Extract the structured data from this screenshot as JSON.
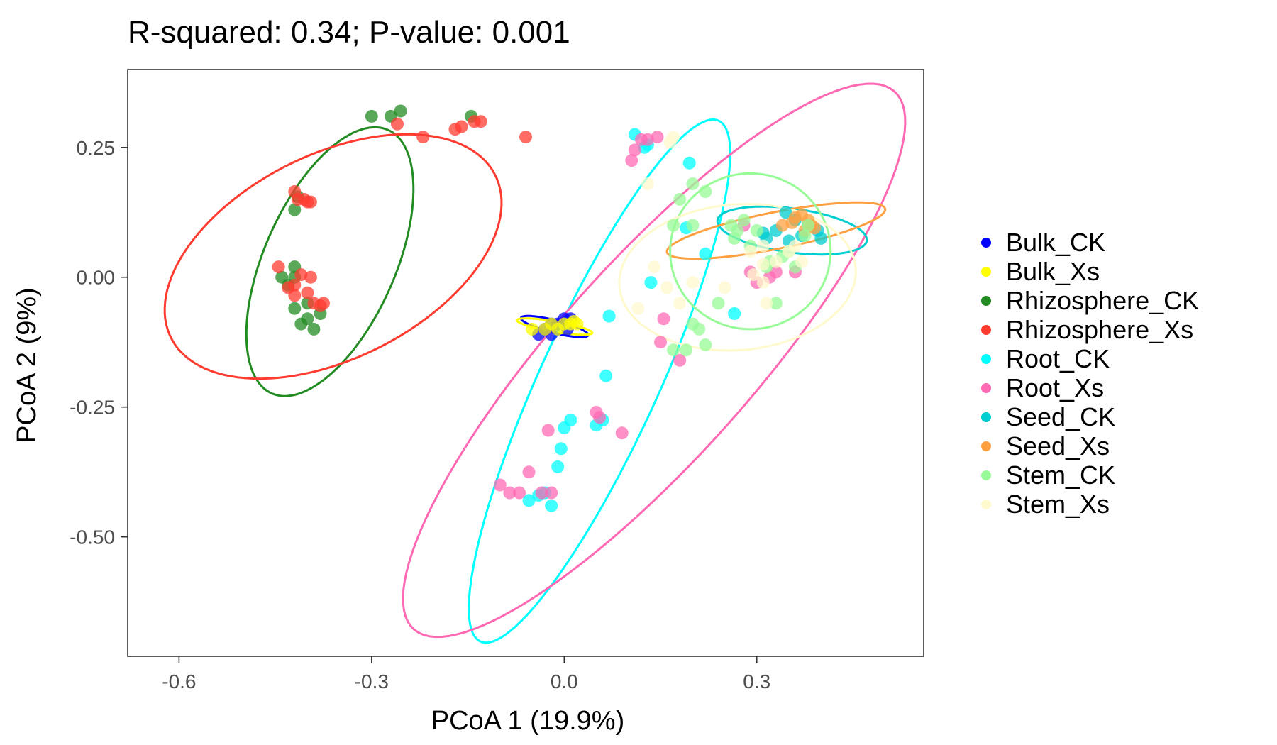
{
  "chart_data": {
    "type": "scatter",
    "title": "R-squared: 0.34; P-value: 0.001",
    "xlabel": "PCoA 1 (19.9%)",
    "ylabel": "PCoA 2 (9%)",
    "xlim": [
      -0.68,
      0.56
    ],
    "ylim": [
      -0.73,
      0.4
    ],
    "x_ticks": [
      {
        "value": -0.6,
        "label": "-0.6"
      },
      {
        "value": -0.3,
        "label": "-0.3"
      },
      {
        "value": 0.0,
        "label": "0.0"
      },
      {
        "value": 0.3,
        "label": "0.3"
      }
    ],
    "y_ticks": [
      {
        "value": 0.25,
        "label": "0.25"
      },
      {
        "value": 0.0,
        "label": "0.00"
      },
      {
        "value": -0.25,
        "label": "-0.25"
      },
      {
        "value": -0.5,
        "label": "-0.50"
      }
    ],
    "legend_position": "right",
    "grid": false,
    "series": [
      {
        "name": "Bulk_CK",
        "color": "#0000FF",
        "points": [
          [
            -0.04,
            -0.11
          ],
          [
            -0.03,
            -0.1
          ],
          [
            -0.02,
            -0.09
          ],
          [
            -0.01,
            -0.09
          ],
          [
            0.0,
            -0.08
          ],
          [
            0.01,
            -0.08
          ],
          [
            -0.02,
            -0.11
          ],
          [
            0.005,
            -0.1
          ]
        ],
        "ellipse": {
          "center": [
            -0.015,
            -0.095
          ],
          "rx": 0.055,
          "ry": 0.012,
          "angle_deg": -18
        }
      },
      {
        "name": "Bulk_Xs",
        "color": "#FFFF00",
        "points": [
          [
            -0.05,
            -0.1
          ],
          [
            -0.03,
            -0.1
          ],
          [
            -0.02,
            -0.09
          ],
          [
            0.0,
            -0.09
          ],
          [
            0.01,
            -0.09
          ],
          [
            0.02,
            -0.09
          ],
          [
            -0.01,
            -0.1
          ],
          [
            0.015,
            -0.085
          ]
        ],
        "ellipse": {
          "center": [
            -0.015,
            -0.095
          ],
          "rx": 0.06,
          "ry": 0.01,
          "angle_deg": -12
        }
      },
      {
        "name": "Rhizosphere_CK",
        "color": "#228B22",
        "points": [
          [
            -0.3,
            0.31
          ],
          [
            -0.27,
            0.31
          ],
          [
            -0.255,
            0.32
          ],
          [
            -0.145,
            0.31
          ],
          [
            -0.42,
            0.13
          ],
          [
            -0.415,
            0.155
          ],
          [
            -0.44,
            0.0
          ],
          [
            -0.42,
            0.02
          ],
          [
            -0.43,
            -0.015
          ],
          [
            -0.42,
            -0.06
          ],
          [
            -0.4,
            -0.05
          ],
          [
            -0.41,
            -0.09
          ],
          [
            -0.39,
            -0.1
          ],
          [
            -0.4,
            -0.08
          ],
          [
            -0.38,
            -0.07
          ],
          [
            -0.42,
            0.0
          ]
        ],
        "ellipse": {
          "center": [
            -0.365,
            0.03
          ],
          "rx": 0.27,
          "ry": 0.105,
          "angle_deg": 72
        }
      },
      {
        "name": "Rhizosphere_Xs",
        "color": "#FF3B30",
        "points": [
          [
            -0.26,
            0.295
          ],
          [
            -0.22,
            0.27
          ],
          [
            -0.17,
            0.285
          ],
          [
            -0.16,
            0.29
          ],
          [
            -0.14,
            0.3
          ],
          [
            -0.13,
            0.3
          ],
          [
            -0.06,
            0.27
          ],
          [
            -0.42,
            0.165
          ],
          [
            -0.415,
            0.15
          ],
          [
            -0.405,
            0.15
          ],
          [
            -0.4,
            0.145
          ],
          [
            -0.395,
            0.145
          ],
          [
            -0.445,
            0.02
          ],
          [
            -0.41,
            0.005
          ],
          [
            -0.395,
            0.0
          ],
          [
            -0.42,
            -0.015
          ],
          [
            -0.4,
            -0.03
          ],
          [
            -0.42,
            -0.035
          ],
          [
            -0.39,
            -0.05
          ],
          [
            -0.38,
            -0.055
          ],
          [
            -0.43,
            -0.02
          ],
          [
            -0.375,
            -0.05
          ]
        ],
        "ellipse": {
          "center": [
            -0.36,
            0.04
          ],
          "rx": 0.3,
          "ry": 0.185,
          "angle_deg": 38
        }
      },
      {
        "name": "Root_CK",
        "color": "#00FFFF",
        "points": [
          [
            0.11,
            0.275
          ],
          [
            0.13,
            0.255
          ],
          [
            0.125,
            0.25
          ],
          [
            0.195,
            0.22
          ],
          [
            0.19,
            0.095
          ],
          [
            0.135,
            -0.01
          ],
          [
            0.07,
            -0.075
          ],
          [
            0.065,
            -0.19
          ],
          [
            0.06,
            -0.275
          ],
          [
            0.05,
            -0.285
          ],
          [
            0.01,
            -0.275
          ],
          [
            0.0,
            -0.29
          ],
          [
            -0.005,
            -0.33
          ],
          [
            -0.01,
            -0.365
          ],
          [
            -0.04,
            -0.42
          ],
          [
            -0.03,
            -0.415
          ],
          [
            -0.02,
            -0.44
          ],
          [
            -0.055,
            -0.43
          ],
          [
            0.265,
            -0.07
          ],
          [
            0.22,
            0.045
          ]
        ],
        "ellipse": {
          "center": [
            0.055,
            -0.2
          ],
          "rx": 0.535,
          "ry": 0.095,
          "angle_deg": 70
        }
      },
      {
        "name": "Root_Xs",
        "color": "#FF69B4",
        "points": [
          [
            0.105,
            0.225
          ],
          [
            0.11,
            0.245
          ],
          [
            0.12,
            0.265
          ],
          [
            0.13,
            0.265
          ],
          [
            0.145,
            0.27
          ],
          [
            0.155,
            -0.08
          ],
          [
            0.15,
            -0.125
          ],
          [
            0.18,
            -0.16
          ],
          [
            0.05,
            -0.26
          ],
          [
            0.055,
            -0.27
          ],
          [
            0.09,
            -0.3
          ],
          [
            -0.025,
            -0.295
          ],
          [
            -0.055,
            -0.375
          ],
          [
            -0.1,
            -0.4
          ],
          [
            -0.085,
            -0.415
          ],
          [
            -0.07,
            -0.415
          ],
          [
            -0.035,
            -0.415
          ],
          [
            -0.02,
            -0.415
          ],
          [
            0.28,
            0.1
          ],
          [
            0.29,
            0.01
          ],
          [
            0.3,
            -0.01
          ],
          [
            0.32,
            0.0
          ],
          [
            0.33,
            0.01
          ],
          [
            0.36,
            0.01
          ]
        ],
        "ellipse": {
          "center": [
            0.14,
            -0.16
          ],
          "rx": 0.64,
          "ry": 0.165,
          "angle_deg": 55
        }
      },
      {
        "name": "Seed_CK",
        "color": "#00CED1",
        "points": [
          [
            0.31,
            0.085
          ],
          [
            0.315,
            0.075
          ],
          [
            0.33,
            0.09
          ],
          [
            0.345,
            0.125
          ],
          [
            0.36,
            0.11
          ],
          [
            0.38,
            0.1
          ],
          [
            0.395,
            0.09
          ],
          [
            0.4,
            0.075
          ],
          [
            0.35,
            0.07
          ],
          [
            0.37,
            0.08
          ]
        ],
        "ellipse": {
          "center": [
            0.355,
            0.09
          ],
          "rx": 0.118,
          "ry": 0.042,
          "angle_deg": -10
        }
      },
      {
        "name": "Seed_Xs",
        "color": "#FFA040",
        "points": [
          [
            0.36,
            0.115
          ],
          [
            0.37,
            0.12
          ],
          [
            0.38,
            0.11
          ],
          [
            0.385,
            0.1
          ],
          [
            0.375,
            0.09
          ],
          [
            0.34,
            0.1
          ],
          [
            0.355,
            0.105
          ],
          [
            0.39,
            0.095
          ]
        ],
        "ellipse": {
          "center": [
            0.33,
            0.09
          ],
          "rx": 0.175,
          "ry": 0.035,
          "angle_deg": 14
        }
      },
      {
        "name": "Stem_CK",
        "color": "#98FB98",
        "points": [
          [
            0.18,
            0.15
          ],
          [
            0.2,
            0.18
          ],
          [
            0.22,
            0.165
          ],
          [
            0.17,
            0.1
          ],
          [
            0.2,
            0.1
          ],
          [
            0.26,
            0.1
          ],
          [
            0.27,
            0.09
          ],
          [
            0.28,
            0.11
          ],
          [
            0.3,
            0.09
          ],
          [
            0.265,
            0.075
          ],
          [
            0.29,
            0.06
          ],
          [
            0.315,
            0.02
          ],
          [
            0.32,
            0.03
          ],
          [
            0.34,
            0.04
          ],
          [
            0.35,
            0.05
          ],
          [
            0.36,
            0.02
          ],
          [
            0.24,
            -0.05
          ],
          [
            0.33,
            -0.05
          ],
          [
            0.21,
            -0.1
          ],
          [
            0.19,
            -0.14
          ],
          [
            0.17,
            -0.14
          ],
          [
            0.22,
            -0.13
          ],
          [
            0.2,
            -0.09
          ],
          [
            0.38,
            0.1
          ],
          [
            0.375,
            0.08
          ]
        ],
        "ellipse": {
          "center": [
            0.29,
            0.05
          ],
          "rx": 0.125,
          "ry": 0.15,
          "angle_deg": 0
        }
      },
      {
        "name": "Stem_Xs",
        "color": "#FFFACD",
        "points": [
          [
            0.165,
            0.26
          ],
          [
            0.17,
            0.27
          ],
          [
            0.13,
            0.18
          ],
          [
            0.14,
            0.02
          ],
          [
            0.115,
            -0.06
          ],
          [
            0.16,
            -0.02
          ],
          [
            0.18,
            -0.05
          ],
          [
            0.2,
            -0.01
          ],
          [
            0.25,
            -0.02
          ],
          [
            0.29,
            0.05
          ],
          [
            0.31,
            0.06
          ],
          [
            0.31,
            -0.01
          ],
          [
            0.315,
            -0.05
          ],
          [
            0.33,
            0.03
          ],
          [
            0.35,
            0.05
          ],
          [
            0.36,
            0.06
          ],
          [
            0.37,
            0.03
          ],
          [
            0.31,
            0.025
          ],
          [
            0.295,
            0.005
          ]
        ],
        "ellipse": {
          "center": [
            0.27,
            0.0
          ],
          "rx": 0.185,
          "ry": 0.14,
          "angle_deg": 8
        }
      }
    ]
  }
}
